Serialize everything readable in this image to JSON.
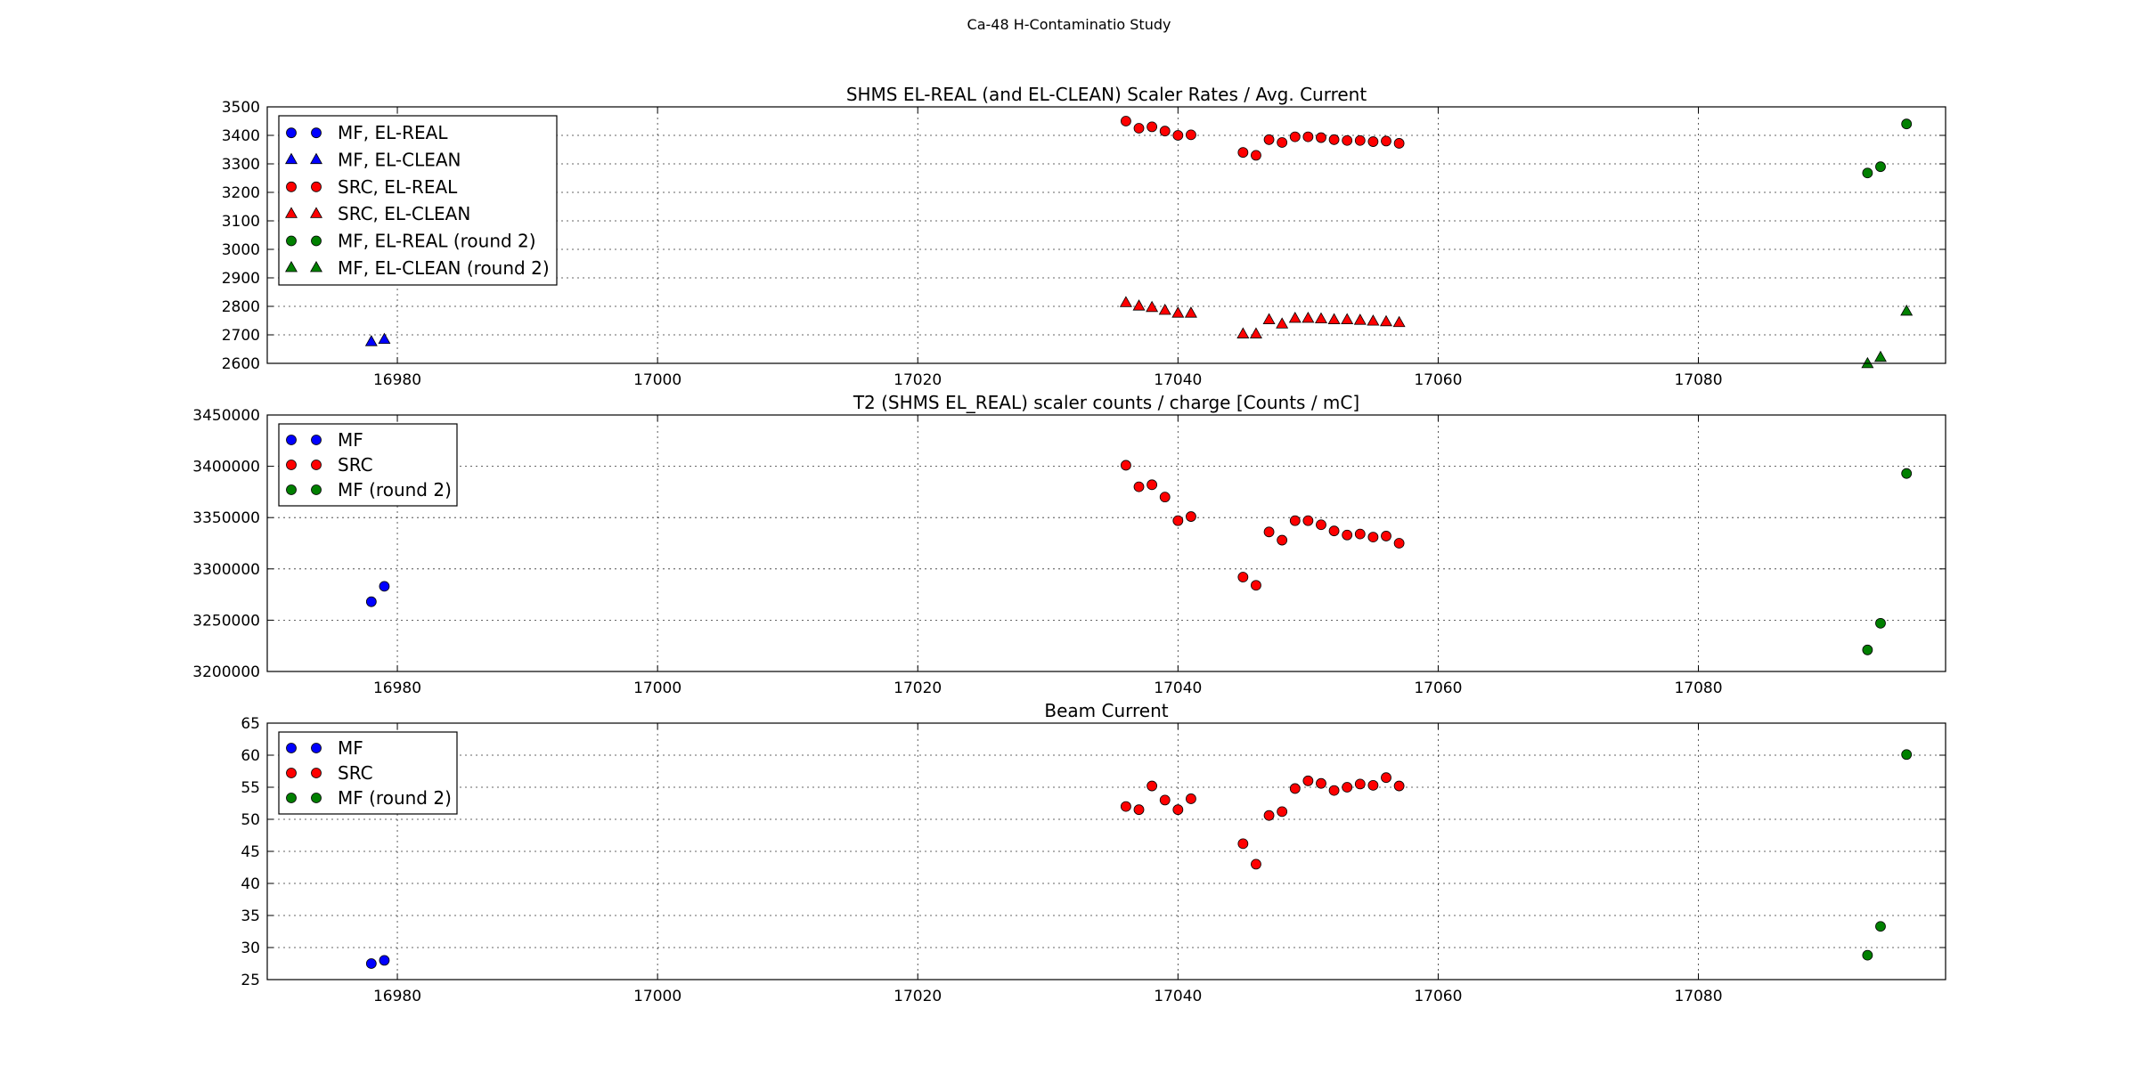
{
  "suptitle": "Ca-48 H-Contaminatio Study",
  "chart_data": [
    {
      "type": "scatter",
      "title": "SHMS EL-REAL (and EL-CLEAN) Scaler Rates / Avg. Current",
      "xlim": [
        16970,
        17099
      ],
      "ylim": [
        2600,
        3500
      ],
      "xticks": [
        16980,
        17000,
        17020,
        17040,
        17060,
        17080
      ],
      "yticks": [
        2600,
        2700,
        2800,
        2900,
        3000,
        3100,
        3200,
        3300,
        3400,
        3500
      ],
      "grid": true,
      "legend_location": "upper-left",
      "series": [
        {
          "name": "MF, EL-REAL",
          "marker": "circle",
          "color": "#0000ff",
          "x": [],
          "y": []
        },
        {
          "name": "MF, EL-CLEAN",
          "marker": "triangle",
          "color": "#0000ff",
          "x": [
            16978,
            16979
          ],
          "y": [
            2675,
            2683
          ]
        },
        {
          "name": "SRC, EL-REAL",
          "marker": "circle",
          "color": "#ff0000",
          "x": [
            17036,
            17037,
            17038,
            17039,
            17040,
            17041,
            17045,
            17046,
            17047,
            17048,
            17049,
            17050,
            17051,
            17052,
            17053,
            17054,
            17055,
            17056,
            17057
          ],
          "y": [
            3450,
            3425,
            3430,
            3415,
            3400,
            3402,
            3340,
            3330,
            3385,
            3375,
            3395,
            3395,
            3392,
            3385,
            3382,
            3382,
            3378,
            3380,
            3372
          ]
        },
        {
          "name": "SRC, EL-CLEAN",
          "marker": "triangle",
          "color": "#ff0000",
          "x": [
            17036,
            17037,
            17038,
            17039,
            17040,
            17041,
            17045,
            17046,
            17047,
            17048,
            17049,
            17050,
            17051,
            17052,
            17053,
            17054,
            17055,
            17056,
            17057
          ],
          "y": [
            2812,
            2800,
            2795,
            2785,
            2775,
            2775,
            2702,
            2702,
            2752,
            2737,
            2757,
            2757,
            2755,
            2752,
            2752,
            2750,
            2747,
            2745,
            2742
          ]
        },
        {
          "name": "MF, EL-REAL (round 2)",
          "marker": "circle",
          "color": "#008000",
          "x": [
            17093,
            17094,
            17096
          ],
          "y": [
            3268,
            3290,
            3440
          ]
        },
        {
          "name": "MF, EL-CLEAN (round 2)",
          "marker": "triangle",
          "color": "#008000",
          "x": [
            17093,
            17094,
            17096
          ],
          "y": [
            2598,
            2620,
            2782
          ]
        }
      ]
    },
    {
      "type": "scatter",
      "title": "T2 (SHMS EL_REAL) scaler counts / charge [Counts / mC]",
      "xlim": [
        16970,
        17099
      ],
      "ylim": [
        3200000,
        3450000
      ],
      "xticks": [
        16980,
        17000,
        17020,
        17040,
        17060,
        17080
      ],
      "yticks": [
        3200000,
        3250000,
        3300000,
        3350000,
        3400000,
        3450000
      ],
      "grid": true,
      "legend_location": "upper-left",
      "series": [
        {
          "name": "MF",
          "marker": "circle",
          "color": "#0000ff",
          "x": [
            16978,
            16979
          ],
          "y": [
            3268000,
            3283000
          ]
        },
        {
          "name": "SRC",
          "marker": "circle",
          "color": "#ff0000",
          "x": [
            17036,
            17037,
            17038,
            17039,
            17040,
            17041,
            17045,
            17046,
            17047,
            17048,
            17049,
            17050,
            17051,
            17052,
            17053,
            17054,
            17055,
            17056,
            17057
          ],
          "y": [
            3401000,
            3380000,
            3382000,
            3370000,
            3347000,
            3351000,
            3292000,
            3284000,
            3336000,
            3328000,
            3347000,
            3347000,
            3343000,
            3337000,
            3333000,
            3334000,
            3331000,
            3332000,
            3325000
          ]
        },
        {
          "name": "MF (round 2)",
          "marker": "circle",
          "color": "#008000",
          "x": [
            17093,
            17094,
            17096
          ],
          "y": [
            3221000,
            3247000,
            3393000
          ]
        }
      ]
    },
    {
      "type": "scatter",
      "title": "Beam Current",
      "xlim": [
        16970,
        17099
      ],
      "ylim": [
        25,
        65
      ],
      "xticks": [
        16980,
        17000,
        17020,
        17040,
        17060,
        17080
      ],
      "yticks": [
        25,
        30,
        35,
        40,
        45,
        50,
        55,
        60,
        65
      ],
      "grid": true,
      "legend_location": "upper-left",
      "series": [
        {
          "name": "MF",
          "marker": "circle",
          "color": "#0000ff",
          "x": [
            16978,
            16979
          ],
          "y": [
            27.5,
            28.0
          ]
        },
        {
          "name": "SRC",
          "marker": "circle",
          "color": "#ff0000",
          "x": [
            17036,
            17037,
            17038,
            17039,
            17040,
            17041,
            17045,
            17046,
            17047,
            17048,
            17049,
            17050,
            17051,
            17052,
            17053,
            17054,
            17055,
            17056,
            17057
          ],
          "y": [
            52.0,
            51.5,
            55.2,
            53.0,
            51.5,
            53.2,
            46.2,
            43.0,
            50.6,
            51.2,
            54.8,
            56.0,
            55.6,
            54.5,
            55.0,
            55.5,
            55.3,
            56.5,
            55.2
          ]
        },
        {
          "name": "MF (round 2)",
          "marker": "circle",
          "color": "#008000",
          "x": [
            17093,
            17094,
            17096
          ],
          "y": [
            28.8,
            33.3,
            60.1
          ]
        }
      ]
    }
  ]
}
